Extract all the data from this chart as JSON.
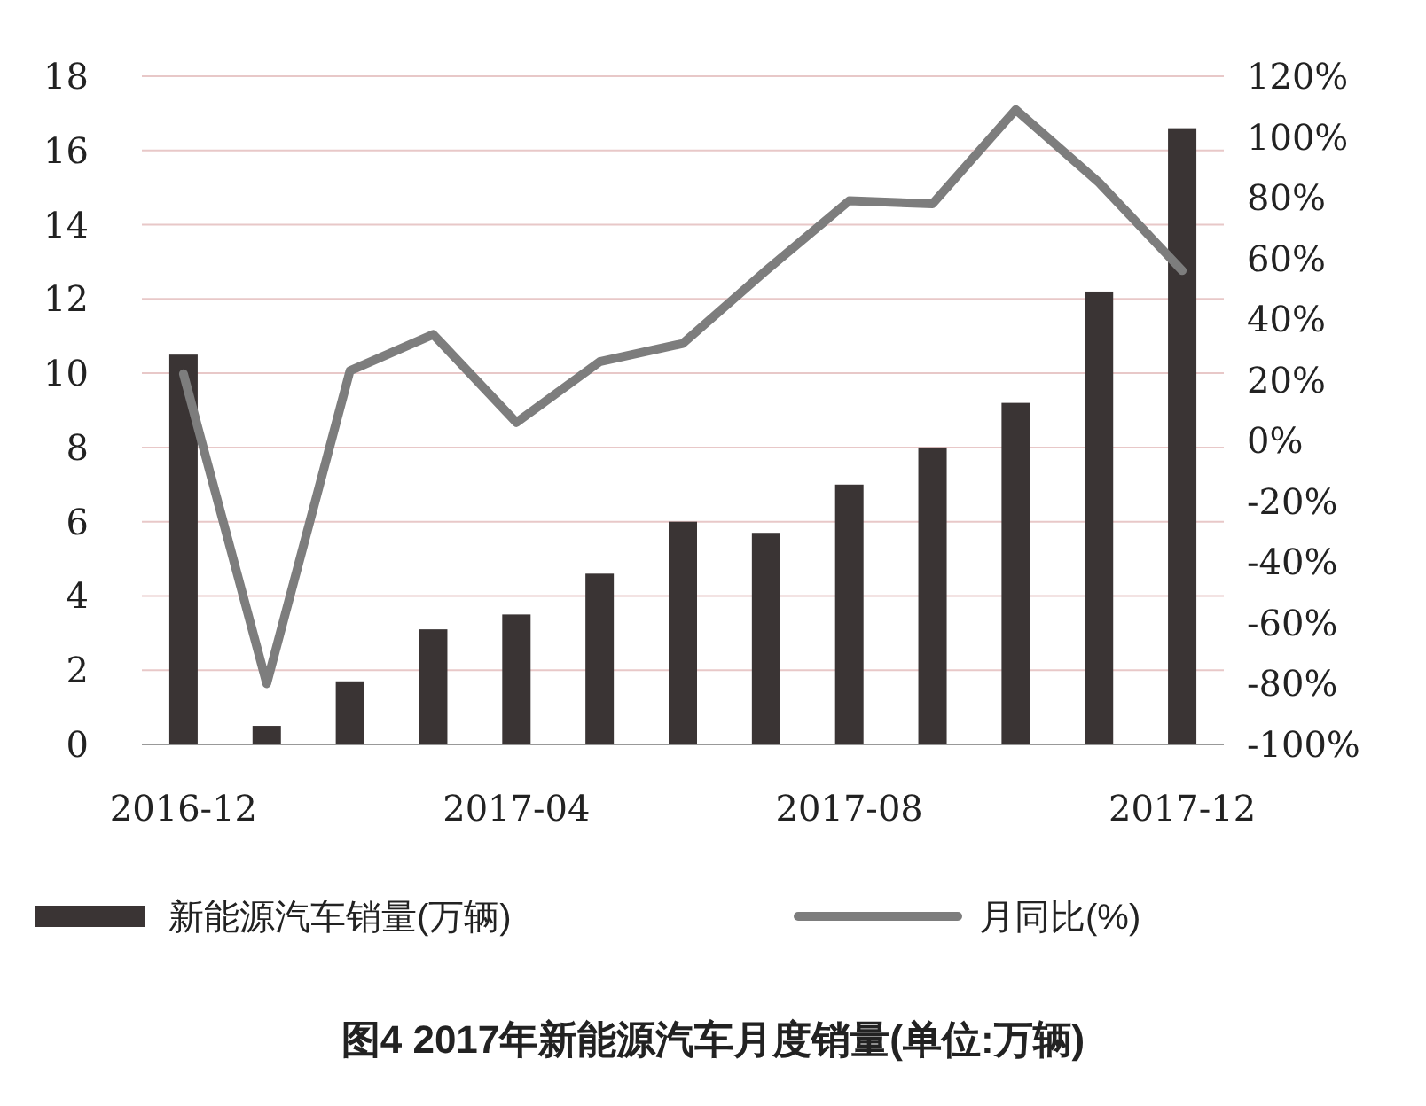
{
  "chart_data": {
    "type": "bar",
    "title": "图4  2017年新能源汽车月度销量(单位:万辆)",
    "categories": [
      "2016-12",
      null,
      null,
      null,
      "2017-04",
      null,
      null,
      null,
      "2017-08",
      null,
      null,
      null,
      "2017-12"
    ],
    "series": [
      {
        "name": "新能源汽车销量(万辆)",
        "color": "#3a3434",
        "values": [
          10.5,
          0.5,
          1.7,
          3.1,
          3.5,
          4.6,
          6.0,
          5.7,
          7.0,
          8.0,
          9.2,
          12.2,
          16.6
        ]
      },
      {
        "name": "月同比(%)",
        "type": "line",
        "axis": "y2",
        "color": "#7d7d7d",
        "values": [
          22,
          -80,
          23,
          35,
          6,
          26,
          32,
          56,
          79,
          78,
          109,
          85,
          56
        ]
      }
    ],
    "ylim": [
      0,
      18
    ],
    "yticks": [
      0,
      2,
      4,
      6,
      8,
      10,
      12,
      14,
      16,
      18
    ],
    "y2lim": [
      -100,
      120
    ],
    "y2ticks": [
      {
        "value": -100,
        "label": "-100%"
      },
      {
        "value": -80,
        "label": "-80%"
      },
      {
        "value": -60,
        "label": "-60%"
      },
      {
        "value": -40,
        "label": "-40%"
      },
      {
        "value": -20,
        "label": "-20%"
      },
      {
        "value": 0,
        "label": "0%"
      },
      {
        "value": 20,
        "label": "20%"
      },
      {
        "value": 40,
        "label": "40%"
      },
      {
        "value": 60,
        "label": "60%"
      },
      {
        "value": 80,
        "label": "80%"
      },
      {
        "value": 100,
        "label": "100%"
      },
      {
        "value": 120,
        "label": "120%"
      }
    ],
    "grid": "y",
    "legend": "bottom"
  }
}
